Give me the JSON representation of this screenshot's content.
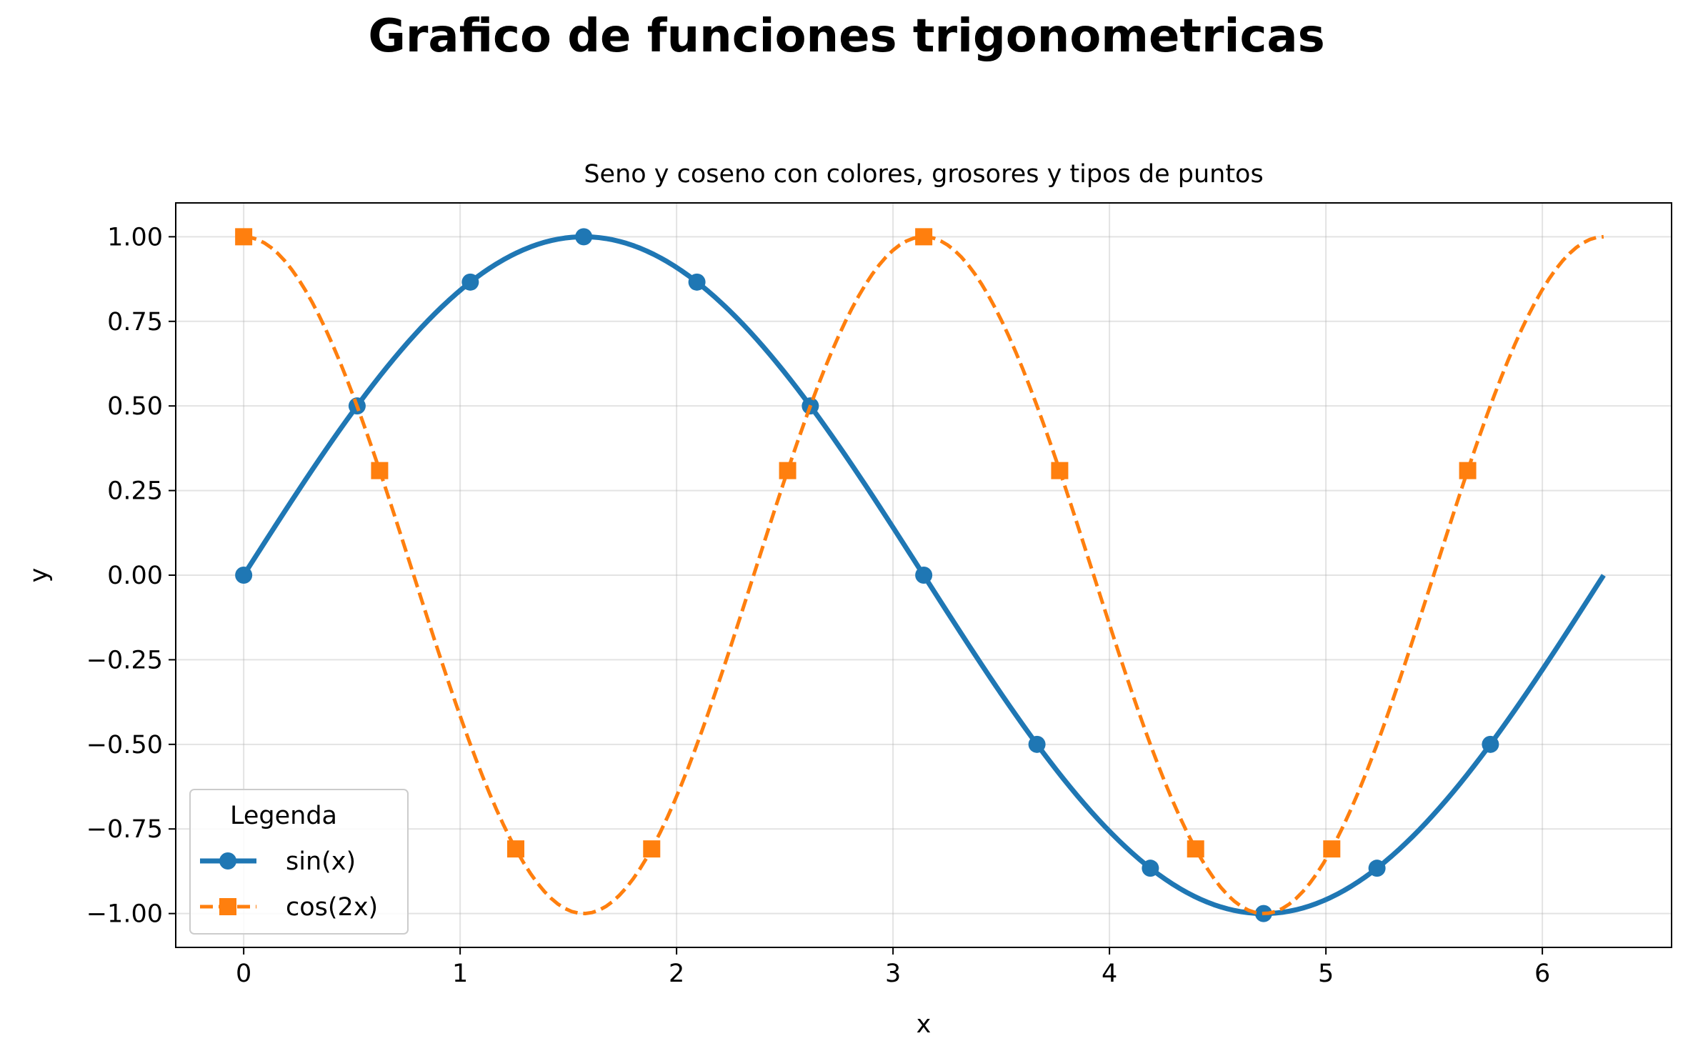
{
  "page_title": "Grafico de funciones trigonometricas",
  "chart_data": {
    "type": "line",
    "title": "Seno y coseno con colores, grosores y tipos de puntos",
    "xlabel": "x",
    "ylabel": "y",
    "xlim": [
      -0.314,
      6.597
    ],
    "ylim": [
      -1.1,
      1.1
    ],
    "x_ticks": [
      0,
      1,
      2,
      3,
      4,
      5,
      6
    ],
    "x_tick_labels": [
      "0",
      "1",
      "2",
      "3",
      "4",
      "5",
      "6"
    ],
    "y_ticks": [
      1.0,
      0.75,
      0.5,
      0.25,
      0.0,
      -0.25,
      -0.5,
      -0.75,
      -1.0
    ],
    "y_tick_labels": [
      "1.00",
      "0.75",
      "0.50",
      "0.25",
      "0.00",
      "−0.25",
      "−0.50",
      "−0.75",
      "−1.00"
    ],
    "grid": true,
    "legend": {
      "title": "Legenda",
      "location": "lower-left"
    },
    "series": [
      {
        "name": "sin(x)",
        "color": "#1f77b4",
        "line_style": "solid",
        "marker": "circle",
        "curve": {
          "x_range": [
            0,
            6.283
          ],
          "points": 200,
          "function": "sin(x)"
        },
        "markers": [
          {
            "x": 0.0,
            "y": 0.0
          },
          {
            "x": 0.524,
            "y": 0.5
          },
          {
            "x": 1.047,
            "y": 0.866
          },
          {
            "x": 1.571,
            "y": 1.0
          },
          {
            "x": 2.094,
            "y": 0.866
          },
          {
            "x": 2.618,
            "y": 0.5
          },
          {
            "x": 3.142,
            "y": 0.0
          },
          {
            "x": 3.665,
            "y": -0.5
          },
          {
            "x": 4.189,
            "y": -0.866
          },
          {
            "x": 4.712,
            "y": -1.0
          },
          {
            "x": 5.236,
            "y": -0.866
          },
          {
            "x": 5.76,
            "y": -0.5
          }
        ]
      },
      {
        "name": "cos(2x)",
        "color": "#ff7f0e",
        "line_style": "dashed",
        "marker": "square",
        "curve": {
          "x_range": [
            0,
            6.283
          ],
          "points": 200,
          "function": "cos(2x)"
        },
        "markers": [
          {
            "x": 0.0,
            "y": 1.0
          },
          {
            "x": 0.628,
            "y": 0.309
          },
          {
            "x": 1.257,
            "y": -0.809
          },
          {
            "x": 1.885,
            "y": -0.809
          },
          {
            "x": 2.513,
            "y": 0.309
          },
          {
            "x": 3.142,
            "y": 1.0
          },
          {
            "x": 3.77,
            "y": 0.309
          },
          {
            "x": 4.398,
            "y": -0.809
          },
          {
            "x": 5.027,
            "y": -0.809
          },
          {
            "x": 5.655,
            "y": 0.309
          }
        ]
      }
    ]
  }
}
